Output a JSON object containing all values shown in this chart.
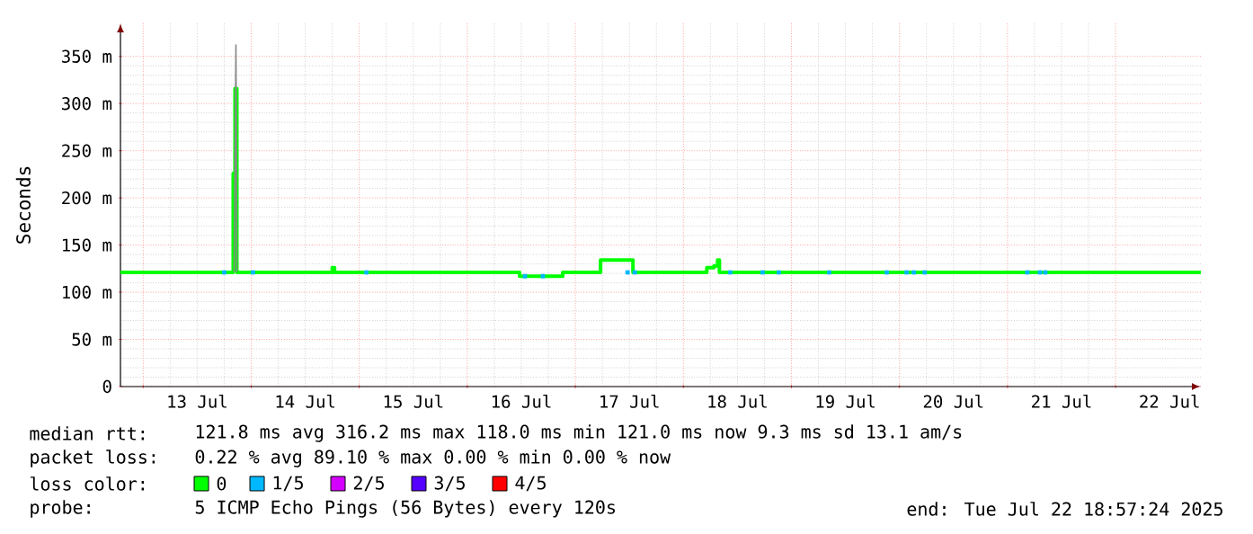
{
  "chart_data": {
    "type": "step",
    "ylabel": "Seconds",
    "xlim": [
      "2025-07-12T18:57",
      "2025-07-22T18:57"
    ],
    "xticks": [
      {
        "value": "2025-07-13T00:00",
        "label": null
      },
      {
        "value": "2025-07-13T12:00",
        "label": "13 Jul"
      },
      {
        "value": "2025-07-14T00:00",
        "label": null
      },
      {
        "value": "2025-07-14T12:00",
        "label": "14 Jul"
      },
      {
        "value": "2025-07-15T00:00",
        "label": null
      },
      {
        "value": "2025-07-15T12:00",
        "label": "15 Jul"
      },
      {
        "value": "2025-07-16T00:00",
        "label": null
      },
      {
        "value": "2025-07-16T12:00",
        "label": "16 Jul"
      },
      {
        "value": "2025-07-17T00:00",
        "label": null
      },
      {
        "value": "2025-07-17T12:00",
        "label": "17 Jul"
      },
      {
        "value": "2025-07-18T00:00",
        "label": null
      },
      {
        "value": "2025-07-18T12:00",
        "label": "18 Jul"
      },
      {
        "value": "2025-07-19T00:00",
        "label": null
      },
      {
        "value": "2025-07-19T12:00",
        "label": "19 Jul"
      },
      {
        "value": "2025-07-20T00:00",
        "label": null
      },
      {
        "value": "2025-07-20T12:00",
        "label": "20 Jul"
      },
      {
        "value": "2025-07-21T00:00",
        "label": null
      },
      {
        "value": "2025-07-21T12:00",
        "label": "21 Jul"
      },
      {
        "value": "2025-07-22T00:00",
        "label": null
      },
      {
        "value": "2025-07-22T12:00",
        "label": "22 Jul"
      }
    ],
    "ylim": [
      0,
      385
    ],
    "yticks": [
      0,
      {
        "value": 50,
        "label": "50 m"
      },
      {
        "value": 100,
        "label": "100 m"
      },
      {
        "value": 150,
        "label": "150 m"
      },
      {
        "value": 200,
        "label": "200 m"
      },
      {
        "value": 250,
        "label": "250 m"
      },
      {
        "value": 300,
        "label": "300 m"
      },
      {
        "value": 350,
        "label": "350 m"
      }
    ],
    "grid": true,
    "legend": "bottom",
    "legend_title": "loss color:",
    "series": [
      {
        "type": "line",
        "color": "#888888",
        "x": [
          "2025-07-13T20:12",
          "2025-07-13T20:36",
          "2025-07-13T20:48"
        ],
        "values": [
          121,
          362,
          121
        ]
      },
      {
        "name": "0",
        "color": "#00ff00",
        "x": [
          "2025-07-12T18:57",
          "2025-07-13T20:00",
          "2025-07-13T20:24",
          "2025-07-13T20:48",
          "2025-07-14T18:00",
          "2025-07-14T18:30",
          "2025-07-16T11:36",
          "2025-07-16T21:12",
          "2025-07-17T05:36",
          "2025-07-17T12:48",
          "2025-07-18T05:12",
          "2025-07-18T06:48",
          "2025-07-18T07:36",
          "2025-07-18T08:00",
          "2025-07-22T18:57"
        ],
        "values": [
          121,
          226,
          316,
          121,
          126,
          121,
          117,
          121,
          134,
          121,
          126,
          128,
          134,
          121,
          121
        ]
      },
      {
        "name": "1/5",
        "type": "scatter",
        "marker": "square",
        "color": "#00b8ff",
        "x": [
          "2025-07-13T18:00",
          "2025-07-14T00:24",
          "2025-07-15T01:36",
          "2025-07-16T12:48",
          "2025-07-16T16:48",
          "2025-07-17T11:36",
          "2025-07-17T13:12",
          "2025-07-18T10:24",
          "2025-07-18T17:36",
          "2025-07-18T21:12",
          "2025-07-19T08:24",
          "2025-07-19T21:12",
          "2025-07-20T01:36",
          "2025-07-20T03:12",
          "2025-07-20T05:36",
          "2025-07-21T04:24",
          "2025-07-21T07:12",
          "2025-07-21T08:24"
        ],
        "values": [
          121,
          121,
          121,
          117,
          117,
          121,
          121,
          121,
          121,
          121,
          121,
          121,
          121,
          121,
          121,
          121,
          121,
          121
        ]
      },
      {
        "name": "2/5",
        "type": "scatter",
        "marker": "square",
        "color": "#d400ff"
      },
      {
        "name": "3/5",
        "type": "scatter",
        "marker": "square",
        "color": "#5500ff"
      },
      {
        "name": "4/5",
        "type": "scatter",
        "marker": "square",
        "color": "#ff0000"
      }
    ],
    "annotations": [
      "median rtt:",
      "121.8 ms avg   316.2 ms max   118.0 ms min   121.0 ms now   9.3 ms sd   13.1   am/s",
      "packet loss:",
      "0.22 % avg   89.10 % max   0.00 % min   0.00 % now",
      "probe:",
      "5 ICMP Echo Pings (56 Bytes) every 120s",
      "end: Tue Jul 22 18:57:24 2025"
    ]
  }
}
